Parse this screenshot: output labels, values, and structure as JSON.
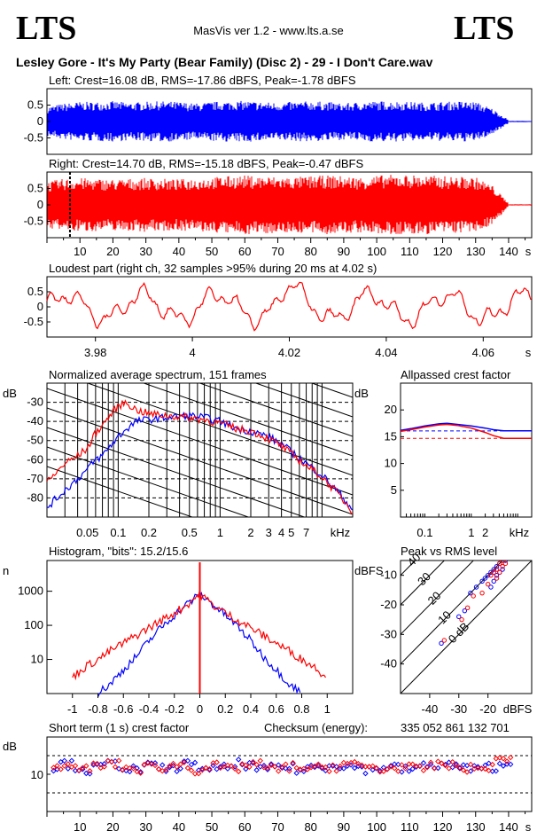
{
  "header": {
    "logo_left": "LTS",
    "logo_right": "LTS",
    "app_version": "MasVis ver 1.2 - www.lts.a.se",
    "track_title": "Lesley Gore - It's My Party (Bear Family) (Disc 2) - 29 - I Don't Care.wav",
    "checksum_label": "Checksum (energy):",
    "checksum_value": "335 052 861 132 701"
  },
  "colors": {
    "left": "#0000ff",
    "right": "#ff0000",
    "black": "#000000"
  },
  "chart_data": [
    {
      "id": "left_waveform",
      "type": "area",
      "title": "Left: Crest=16.08 dB, RMS=-17.86 dBFS, Peak=-1.78 dBFS",
      "ytick_labels": [
        "0.5",
        "0",
        "-0.5"
      ],
      "ylim": [
        -1,
        1
      ],
      "xlim": [
        0,
        147
      ],
      "duration_s": 140,
      "series": [
        {
          "values": [
            0.45,
            0.55,
            0.6,
            0.6,
            0.62,
            0.58,
            0.6,
            0.62,
            0.6,
            0.55,
            0.6,
            0.62,
            0.63,
            0.6,
            0.58,
            0.6,
            0.62,
            0.6,
            0.55,
            0.6,
            0.62,
            0.62,
            0.6,
            0.58,
            0.6,
            0.62,
            0.6,
            0.4,
            0.05
          ]
        }
      ]
    },
    {
      "id": "right_waveform",
      "type": "area",
      "title": "Right: Crest=14.70 dB, RMS=-15.18 dBFS, Peak=-0.47 dBFS",
      "ytick_labels": [
        "0.5",
        "0",
        "-0.5"
      ],
      "ylim": [
        -1,
        1
      ],
      "xlim": [
        0,
        147
      ],
      "duration_s": 140,
      "marker_s": 4.02,
      "xtick_labels": [
        "10",
        "20",
        "30",
        "40",
        "50",
        "60",
        "70",
        "80",
        "90",
        "100",
        "110",
        "120",
        "130",
        "140"
      ],
      "xunit": "s",
      "series": [
        {
          "values": [
            0.7,
            0.8,
            0.82,
            0.8,
            0.78,
            0.8,
            0.82,
            0.8,
            0.78,
            0.82,
            0.85,
            0.88,
            0.9,
            0.88,
            0.86,
            0.85,
            0.88,
            0.9,
            0.88,
            0.85,
            0.9,
            0.92,
            0.92,
            0.9,
            0.88,
            0.86,
            0.85,
            0.6,
            0.05
          ]
        }
      ]
    },
    {
      "id": "loudest_part",
      "type": "line",
      "title": "Loudest part (right ch, 32 samples >95% during 20 ms at 4.02 s)",
      "xlim": [
        3.97,
        4.07
      ],
      "ylim": [
        -1,
        1
      ],
      "ytick_labels": [
        "0.5",
        "0",
        "-0.5"
      ],
      "xtick_labels": [
        "3.98",
        "4",
        "4.02",
        "4.04",
        "4.06"
      ],
      "xticks": [
        3.98,
        4.0,
        4.02,
        4.04,
        4.06
      ],
      "xunit": "s"
    },
    {
      "id": "avg_spectrum",
      "type": "line",
      "title": "Normalized average spectrum, 151 frames",
      "ylabel": "dB",
      "xunit": "kHz",
      "xscale": "log",
      "xlim": [
        0.02,
        20
      ],
      "ylim": [
        -90,
        -20
      ],
      "ytick_labels": [
        "-30",
        "-40",
        "-50",
        "-60",
        "-70",
        "-80"
      ],
      "yticks": [
        -30,
        -40,
        -50,
        -60,
        -70,
        -80
      ],
      "xtick_labels": [
        "0.05",
        "0.1",
        "0.2",
        "0.5",
        "1",
        "2",
        "3",
        "4",
        "5",
        "7"
      ],
      "xticks": [
        0.05,
        0.1,
        0.2,
        0.5,
        1,
        2,
        3,
        4,
        5,
        7
      ],
      "x": [
        0.02,
        0.03,
        0.04,
        0.05,
        0.06,
        0.07,
        0.08,
        0.1,
        0.12,
        0.15,
        0.2,
        0.3,
        0.5,
        0.7,
        1,
        1.5,
        2,
        3,
        4,
        5,
        7,
        10,
        15,
        20
      ],
      "series": [
        {
          "values": [
            -85,
            -76,
            -70,
            -65,
            -60,
            -58,
            -54,
            -48,
            -44,
            -40,
            -39,
            -38,
            -37,
            -38,
            -40,
            -44,
            -45,
            -48,
            -52,
            -56,
            -62,
            -68,
            -78,
            -86
          ]
        },
        {
          "values": [
            -72,
            -62,
            -58,
            -54,
            -46,
            -42,
            -38,
            -32,
            -30,
            -34,
            -36,
            -37,
            -38,
            -39,
            -41,
            -44,
            -45,
            -49,
            -53,
            -57,
            -63,
            -69,
            -79,
            -87
          ]
        }
      ]
    },
    {
      "id": "allpassed_crest",
      "type": "line",
      "title": "Allpassed crest factor",
      "ylabel": "dB",
      "xunit": "kHz",
      "xscale": "log",
      "xlim": [
        0.03,
        20
      ],
      "ylim": [
        0,
        25
      ],
      "ytick_labels": [
        "20",
        "15",
        "10",
        "5"
      ],
      "yticks": [
        20,
        15,
        10,
        5
      ],
      "xtick_labels": [
        "0.1",
        "1",
        "2"
      ],
      "xticks": [
        0.1,
        1,
        2
      ],
      "x": [
        0.03,
        0.05,
        0.1,
        0.2,
        0.3,
        0.5,
        1,
        2,
        3,
        5,
        10,
        20
      ],
      "series": [
        {
          "values": [
            16.2,
            16.5,
            17.0,
            17.4,
            17.5,
            17.3,
            17.0,
            16.6,
            16.3,
            16.1,
            16.1,
            16.1
          ]
        },
        {
          "values": [
            16.0,
            16.3,
            16.8,
            17.2,
            17.3,
            17.1,
            16.6,
            15.8,
            15.2,
            14.7,
            14.7,
            14.7
          ]
        }
      ],
      "ref_levels": [
        16.08,
        14.7
      ]
    },
    {
      "id": "histogram",
      "type": "line",
      "title": "Histogram, \"bits\": 15.2/15.6",
      "ylabel": "n",
      "yscale": "log",
      "xlim": [
        -1.2,
        1.2
      ],
      "ytick_labels": [
        "1000",
        "100",
        "10"
      ],
      "yticks": [
        1000,
        100,
        10
      ],
      "xtick_labels": [
        "-1",
        "-0.8",
        "-0.6",
        "-0.4",
        "-0.2",
        "0",
        "0.2",
        "0.4",
        "0.6",
        "0.8",
        "1"
      ],
      "xticks": [
        -1,
        -0.8,
        -0.6,
        -0.4,
        -0.2,
        0,
        0.2,
        0.4,
        0.6,
        0.8,
        1
      ],
      "series": [
        {
          "x": [
            -0.8,
            -0.7,
            -0.6,
            -0.5,
            -0.4,
            -0.3,
            -0.2,
            -0.1,
            0,
            0.1,
            0.2,
            0.3,
            0.4,
            0.5,
            0.6,
            0.7,
            0.8
          ],
          "values": [
            1,
            2,
            5,
            12,
            35,
            90,
            200,
            420,
            800,
            420,
            200,
            90,
            35,
            12,
            5,
            2,
            1
          ]
        },
        {
          "x": [
            -1.0,
            -0.9,
            -0.8,
            -0.7,
            -0.6,
            -0.5,
            -0.4,
            -0.3,
            -0.2,
            -0.1,
            0,
            0.1,
            0.2,
            0.3,
            0.4,
            0.5,
            0.6,
            0.7,
            0.8,
            0.9,
            1.0
          ],
          "values": [
            3,
            6,
            10,
            18,
            30,
            50,
            85,
            140,
            230,
            400,
            850,
            400,
            230,
            140,
            85,
            50,
            30,
            18,
            10,
            6,
            3
          ]
        }
      ]
    },
    {
      "id": "peak_vs_rms",
      "type": "scatter",
      "title": "Peak vs RMS level",
      "ylabel": "dBFS",
      "xunit": "dBFS",
      "xlim": [
        -50,
        -5
      ],
      "ylim": [
        -50,
        -5
      ],
      "ytick_labels": [
        "-10",
        "-20",
        "-30",
        "-40"
      ],
      "yticks": [
        -10,
        -20,
        -30,
        -40
      ],
      "xtick_labels": [
        "-40",
        "-30",
        "-20"
      ],
      "xticks": [
        -40,
        -30,
        -20
      ],
      "diag_labels": [
        "40",
        "30",
        "20",
        "10",
        "0 dB"
      ],
      "series": [
        {
          "x": [
            -36,
            -30,
            -28,
            -26,
            -24,
            -22,
            -21,
            -20,
            -19,
            -18,
            -17,
            -16,
            -15,
            -14,
            -19,
            -18,
            -17,
            -16,
            -15
          ],
          "values": [
            -33,
            -24,
            -22,
            -16,
            -14,
            -12,
            -11,
            -10,
            -9,
            -8,
            -7,
            -6,
            -5,
            -5,
            -14,
            -12,
            -10,
            -9,
            -8
          ]
        },
        {
          "x": [
            -35,
            -29,
            -27,
            -25,
            -22,
            -20,
            -19,
            -18,
            -17,
            -16,
            -15,
            -14,
            -13,
            -17,
            -16,
            -15,
            -14
          ],
          "values": [
            -32,
            -25,
            -21,
            -17,
            -16,
            -13,
            -10,
            -9,
            -8,
            -6,
            -5,
            -4,
            -4,
            -11,
            -9,
            -7,
            -6
          ]
        }
      ]
    },
    {
      "id": "short_term_crest",
      "type": "scatter",
      "title": "Short term (1 s) crest factor",
      "ylabel": "dB",
      "xlim": [
        0,
        147
      ],
      "ylim": [
        0,
        20
      ],
      "ytick_labels": [
        "10"
      ],
      "yticks": [
        10
      ],
      "ref_levels": [
        15,
        5
      ],
      "xtick_labels": [
        "10",
        "20",
        "30",
        "40",
        "50",
        "60",
        "70",
        "80",
        "90",
        "100",
        "110",
        "120",
        "130",
        "140"
      ],
      "xticks": [
        10,
        20,
        30,
        40,
        50,
        60,
        70,
        80,
        90,
        100,
        110,
        120,
        130,
        140
      ],
      "xunit": "s",
      "series": [
        {
          "values": [
            12,
            13,
            12,
            11,
            12,
            13,
            12,
            11,
            12,
            12,
            11,
            13,
            12,
            12,
            11,
            12,
            13,
            12,
            11,
            12,
            12,
            11,
            12,
            12,
            13,
            12,
            12,
            11,
            12,
            12,
            11,
            12,
            12,
            13,
            12,
            12,
            11,
            12,
            12,
            13
          ]
        },
        {
          "values": [
            13,
            12,
            11,
            12,
            12,
            13,
            12,
            11,
            12,
            12,
            12,
            13,
            11,
            12,
            12,
            11,
            12,
            13,
            12,
            11,
            12,
            12,
            11,
            12,
            12,
            13,
            12,
            12,
            11,
            12,
            12,
            11,
            12,
            13,
            12,
            12,
            11,
            12,
            14,
            15
          ]
        }
      ]
    }
  ]
}
